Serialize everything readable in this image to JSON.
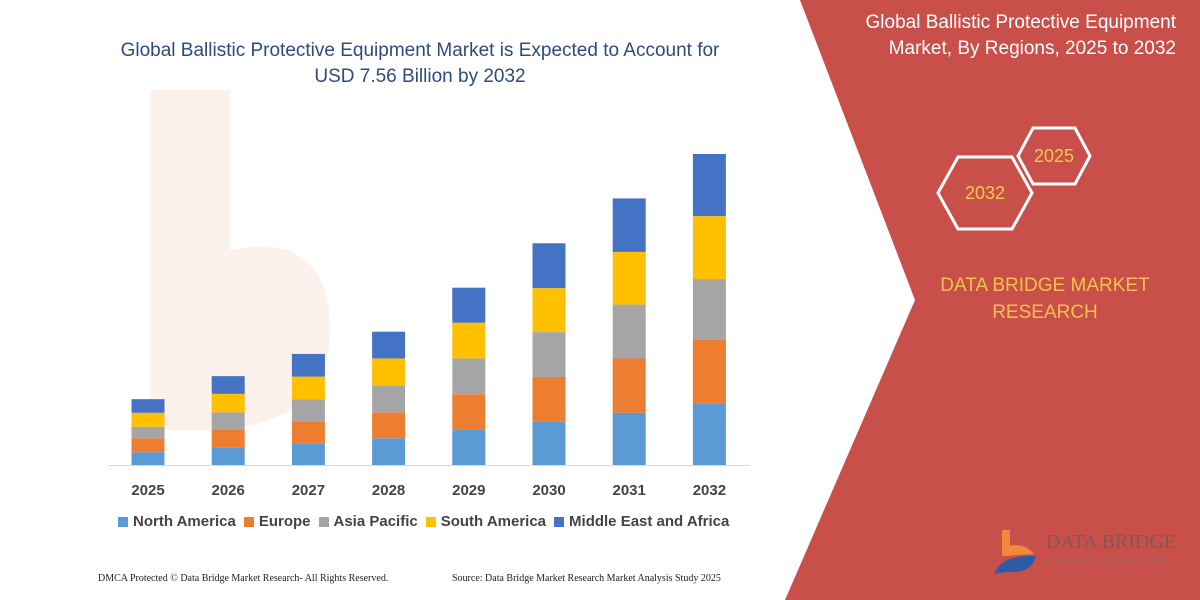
{
  "title": "Global Ballistic Protective Equipment Market is Expected to Account for USD 7.56 Billion by 2032",
  "right_panel": {
    "title": "Global Ballistic Protective Equipment Market, By Regions, 2025 to 2032",
    "hex_labels": [
      "2032",
      "2025"
    ],
    "brand": "DATA BRIDGE MARKET RESEARCH",
    "logo_text": "DATA BRIDGE",
    "logo_sub": "MARKET RESEARCH",
    "color": "#C9504A"
  },
  "footer": {
    "left": "DMCA Protected © Data Bridge Market Research-  All Rights Reserved.",
    "right": "Source: Data Bridge Market Research  Market Analysis Study 2025"
  },
  "chart_data": {
    "type": "bar",
    "stacked": true,
    "categories": [
      "2025",
      "2026",
      "2027",
      "2028",
      "2029",
      "2030",
      "2031",
      "2032"
    ],
    "unit": "USD Billion",
    "grid": false,
    "legend_position": "bottom",
    "series": [
      {
        "name": "North America",
        "color": "#5B9BD5",
        "values": [
          0.31,
          0.43,
          0.53,
          0.65,
          0.87,
          1.05,
          1.27,
          1.5
        ]
      },
      {
        "name": "Europe",
        "color": "#ED7D31",
        "values": [
          0.34,
          0.44,
          0.53,
          0.63,
          0.85,
          1.09,
          1.32,
          1.54
        ]
      },
      {
        "name": "Asia Pacific",
        "color": "#A5A5A5",
        "values": [
          0.28,
          0.41,
          0.54,
          0.65,
          0.87,
          1.09,
          1.31,
          1.48
        ]
      },
      {
        "name": "South America",
        "color": "#FFC000",
        "values": [
          0.34,
          0.45,
          0.55,
          0.66,
          0.87,
          1.07,
          1.28,
          1.53
        ]
      },
      {
        "name": "Middle East and Africa",
        "color": "#4472C4",
        "values": [
          0.33,
          0.43,
          0.55,
          0.65,
          0.85,
          1.09,
          1.3,
          1.51
        ]
      }
    ]
  }
}
